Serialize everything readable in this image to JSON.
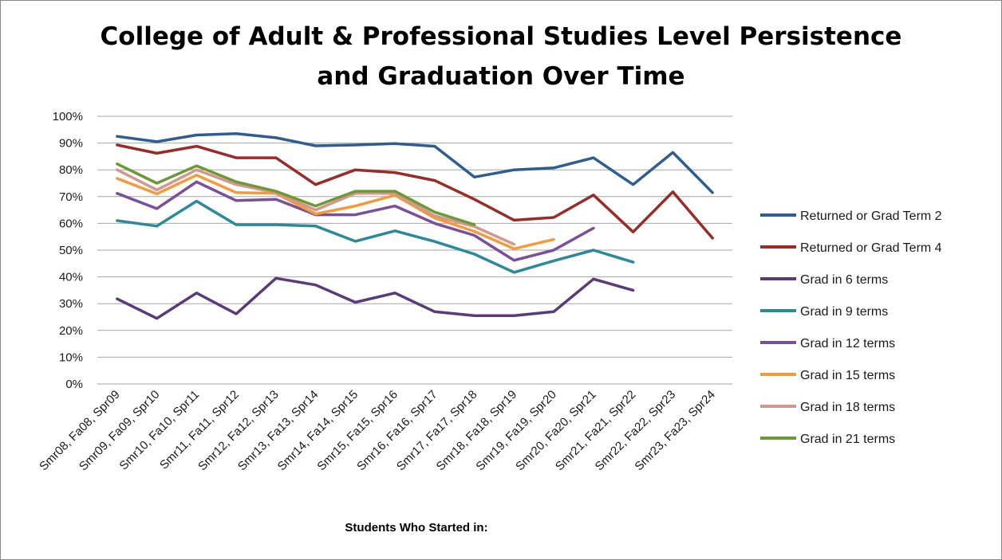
{
  "chart_data": {
    "type": "line",
    "title_lines": [
      "College of Adult & Professional Studies Level Persistence",
      "and Graduation Over Time"
    ],
    "xlabel": "Students Who Started in:",
    "ylabel": "",
    "ylim": [
      0,
      1
    ],
    "y_tick_labels": [
      "0%",
      "10%",
      "20%",
      "30%",
      "40%",
      "50%",
      "60%",
      "70%",
      "80%",
      "90%",
      "100%"
    ],
    "grid": "horizontal",
    "legend_position": "right",
    "categories": [
      "Smr08, Fa08, Spr09",
      "Smr09, Fa09, Spr10",
      "Smr10, Fa10, Spr11",
      "Smr11, Fa11, Spr12",
      "Smr12, Fa12, Spr13",
      "Smr13, Fa13, Spr14",
      "Smr14, Fa14, Spr15",
      "Smr15, Fa15, Spr16",
      "Smr16, Fa16, Spr17",
      "Smr17, Fa17, Spr18",
      "Smr18, Fa18, Spr19",
      "Smr19, Fa19, Spr20",
      "Smr20, Fa20, Spr21",
      "Smr21, Fa21, Spr22",
      "Smr22, Fa22, Spr23",
      "Smr23, Fa23, Spr24"
    ],
    "series": [
      {
        "name": "Returned or Grad Term 2",
        "color": "#2E5E91",
        "values": [
          0.925,
          0.905,
          0.93,
          0.935,
          0.92,
          0.89,
          0.893,
          0.898,
          0.888,
          0.773,
          0.8,
          0.807,
          0.845,
          0.745,
          0.865,
          0.715
        ]
      },
      {
        "name": "Returned or Grad Term 4",
        "color": "#9B2B27",
        "values": [
          0.893,
          0.862,
          0.888,
          0.845,
          0.845,
          0.745,
          0.8,
          0.79,
          0.76,
          0.69,
          0.612,
          0.622,
          0.706,
          0.568,
          0.718,
          0.545
        ]
      },
      {
        "name": "Grad in 6 terms",
        "color": "#5B3A7A",
        "values": [
          0.318,
          0.245,
          0.34,
          0.262,
          0.395,
          0.37,
          0.305,
          0.34,
          0.27,
          0.255,
          0.255,
          0.27,
          0.392,
          0.35,
          null,
          null
        ]
      },
      {
        "name": "Grad in 9 terms",
        "color": "#2B8A9A",
        "values": [
          0.61,
          0.59,
          0.683,
          0.595,
          0.595,
          0.59,
          0.533,
          0.572,
          0.532,
          0.485,
          0.417,
          0.46,
          0.5,
          0.455,
          null,
          null
        ]
      },
      {
        "name": "Grad in 12 terms",
        "color": "#7A4E9A",
        "values": [
          0.712,
          0.655,
          0.755,
          0.685,
          0.69,
          0.632,
          0.632,
          0.665,
          0.6,
          0.555,
          0.462,
          0.5,
          0.582,
          null,
          null,
          null
        ]
      },
      {
        "name": "Grad in 15 terms",
        "color": "#F59A3A",
        "values": [
          0.768,
          0.71,
          0.78,
          0.715,
          0.712,
          0.635,
          0.665,
          0.705,
          0.62,
          0.57,
          0.505,
          0.54,
          null,
          null,
          null,
          null
        ]
      },
      {
        "name": "Grad in 18 terms",
        "color": "#D4968F",
        "values": [
          0.8,
          0.725,
          0.8,
          0.745,
          0.715,
          0.65,
          0.712,
          0.712,
          0.628,
          0.588,
          0.522,
          null,
          null,
          null,
          null,
          null
        ]
      },
      {
        "name": "Grad in 21 terms",
        "color": "#6B9A35",
        "values": [
          0.822,
          0.75,
          0.815,
          0.755,
          0.72,
          0.665,
          0.72,
          0.72,
          0.642,
          0.595,
          null,
          null,
          null,
          null,
          null,
          null
        ]
      }
    ]
  }
}
